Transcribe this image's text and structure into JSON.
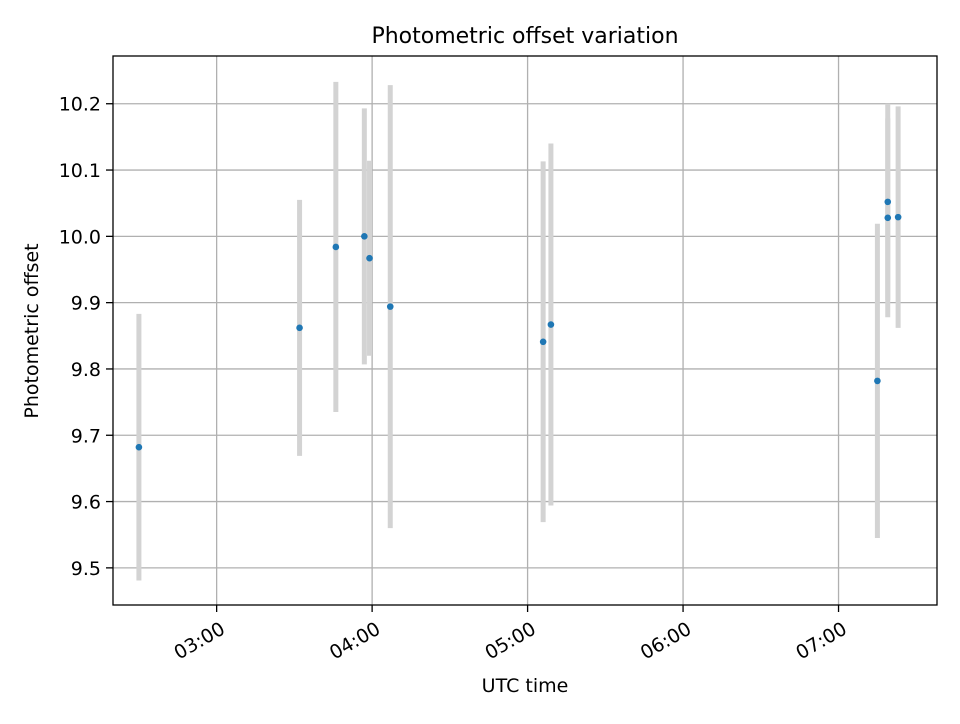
{
  "chart_data": {
    "type": "scatter",
    "title": "Photometric offset variation",
    "xlabel": "UTC time",
    "ylabel": "Photometric offset",
    "x_is_time": true,
    "xlim": [
      "02:20",
      "07:38"
    ],
    "ylim": [
      9.444,
      10.272
    ],
    "xticks": [
      "03:00",
      "04:00",
      "05:00",
      "06:00",
      "07:00"
    ],
    "yticks": [
      9.5,
      9.6,
      9.7,
      9.8,
      9.9,
      10.0,
      10.1,
      10.2
    ],
    "grid": true,
    "legend": "none",
    "series": [
      {
        "points": [
          {
            "x": "02:30",
            "y": 9.682,
            "err": 0.201
          },
          {
            "x": "03:32",
            "y": 9.862,
            "err": 0.193
          },
          {
            "x": "03:46",
            "y": 9.984,
            "err": 0.249
          },
          {
            "x": "03:57",
            "y": 10.0,
            "err": 0.193
          },
          {
            "x": "03:59",
            "y": 9.967,
            "err": 0.147
          },
          {
            "x": "04:07",
            "y": 9.894,
            "err": 0.334
          },
          {
            "x": "05:06",
            "y": 9.841,
            "err": 0.272
          },
          {
            "x": "05:09",
            "y": 9.867,
            "err": 0.273
          },
          {
            "x": "07:15",
            "y": 9.782,
            "err": 0.237
          },
          {
            "x": "07:19",
            "y": 10.052,
            "err": 0.148
          },
          {
            "x": "07:19",
            "y": 10.028,
            "err": 0.15
          },
          {
            "x": "07:23",
            "y": 10.029,
            "err": 0.167
          }
        ]
      }
    ],
    "colors": {
      "point": "#1f77b4",
      "errorbar": "#d3d3d3",
      "grid": "#b0b0b0",
      "axes": "#000000"
    }
  }
}
